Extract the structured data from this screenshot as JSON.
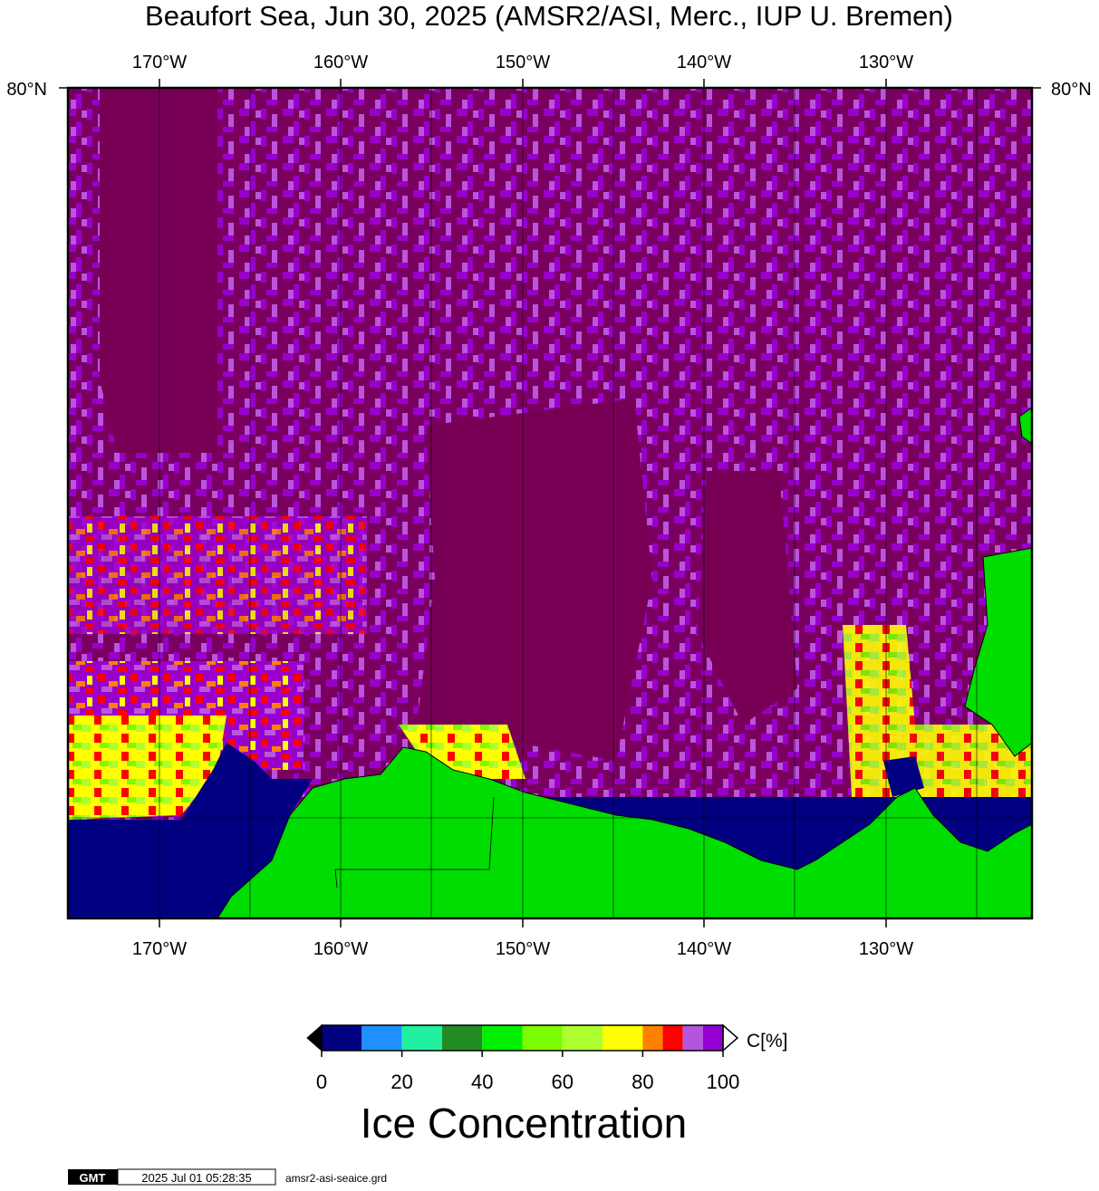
{
  "title": "Beaufort Sea, Jun 30, 2025 (AMSR2/ASI, Merc., IUP U. Bremen)",
  "top_axis": {
    "labels": [
      "170°W",
      "160°W",
      "150°W",
      "140°W",
      "130°W"
    ]
  },
  "bottom_axis": {
    "labels": [
      "170°W",
      "160°W",
      "150°W",
      "140°W",
      "130°W"
    ]
  },
  "lat_labels": {
    "left": "80°N",
    "right": "80°N"
  },
  "colorbar": {
    "bounds": [
      0,
      10,
      20,
      30,
      40,
      50,
      60,
      70,
      80,
      85,
      90,
      95,
      100
    ],
    "colors": [
      "#000080",
      "#1e90ff",
      "#20f0a0",
      "#228b22",
      "#00ee00",
      "#7cfc00",
      "#adff2f",
      "#ffff00",
      "#ff8000",
      "#ff0000",
      "#b455dd",
      "#9400d3"
    ],
    "ticks": [
      0,
      20,
      40,
      60,
      80,
      100
    ],
    "unit": "C[%]",
    "title": "Ice Concentration"
  },
  "footer": {
    "logo": "GMT",
    "timestamp": "2025 Jul 01 05:28:35",
    "file": "amsr2-asi-seaice.grd"
  }
}
